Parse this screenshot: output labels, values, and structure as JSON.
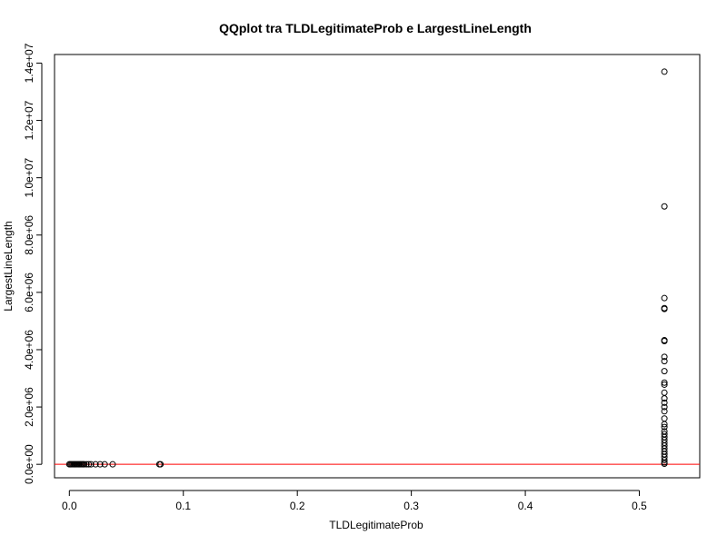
{
  "chart_data": {
    "type": "scatter",
    "title": "QQplot tra TLDLegitimateProb e LargestLineLength",
    "xlabel": "TLDLegitimateProb",
    "ylabel": "LargestLineLength",
    "xlim": [
      -0.013,
      0.553
    ],
    "ylim": [
      -470000,
      14300000
    ],
    "x_ticks": [
      0.0,
      0.1,
      0.2,
      0.3,
      0.4,
      0.5
    ],
    "x_tick_labels": [
      "0.0",
      "0.1",
      "0.2",
      "0.3",
      "0.4",
      "0.5"
    ],
    "y_ticks": [
      0,
      2000000,
      4000000,
      6000000,
      8000000,
      10000000,
      12000000,
      14000000
    ],
    "y_tick_labels": [
      "0.0e+00",
      "2.0e+06",
      "4.0e+06",
      "6.0e+06",
      "8.0e+06",
      "1.0e+07",
      "1.2e+07",
      "1.4e+07"
    ],
    "grid": false,
    "point_style": "open-circle",
    "reference_line": {
      "y": 0,
      "color": "#ff0000"
    },
    "points": [
      {
        "x": 0.0,
        "y": 0
      },
      {
        "x": 0.001,
        "y": 0
      },
      {
        "x": 0.002,
        "y": 0
      },
      {
        "x": 0.003,
        "y": 0
      },
      {
        "x": 0.004,
        "y": 0
      },
      {
        "x": 0.005,
        "y": 0
      },
      {
        "x": 0.006,
        "y": 0
      },
      {
        "x": 0.007,
        "y": 0
      },
      {
        "x": 0.008,
        "y": 0
      },
      {
        "x": 0.009,
        "y": 0
      },
      {
        "x": 0.01,
        "y": 0
      },
      {
        "x": 0.011,
        "y": 0
      },
      {
        "x": 0.012,
        "y": 0
      },
      {
        "x": 0.013,
        "y": 0
      },
      {
        "x": 0.015,
        "y": 0
      },
      {
        "x": 0.017,
        "y": 0
      },
      {
        "x": 0.019,
        "y": 0
      },
      {
        "x": 0.023,
        "y": 0
      },
      {
        "x": 0.027,
        "y": 0
      },
      {
        "x": 0.031,
        "y": 0
      },
      {
        "x": 0.038,
        "y": 0
      },
      {
        "x": 0.079,
        "y": 0
      },
      {
        "x": 0.08,
        "y": 0
      },
      {
        "x": 0.522,
        "y": 13700000
      },
      {
        "x": 0.522,
        "y": 9000000
      },
      {
        "x": 0.522,
        "y": 5800000
      },
      {
        "x": 0.522,
        "y": 5450000
      },
      {
        "x": 0.522,
        "y": 5420000
      },
      {
        "x": 0.522,
        "y": 4330000
      },
      {
        "x": 0.522,
        "y": 4300000
      },
      {
        "x": 0.522,
        "y": 3750000
      },
      {
        "x": 0.522,
        "y": 3600000
      },
      {
        "x": 0.522,
        "y": 3250000
      },
      {
        "x": 0.522,
        "y": 2850000
      },
      {
        "x": 0.522,
        "y": 2780000
      },
      {
        "x": 0.522,
        "y": 2500000
      },
      {
        "x": 0.522,
        "y": 2300000
      },
      {
        "x": 0.522,
        "y": 2150000
      },
      {
        "x": 0.522,
        "y": 2000000
      },
      {
        "x": 0.522,
        "y": 1850000
      },
      {
        "x": 0.522,
        "y": 1600000
      },
      {
        "x": 0.522,
        "y": 1400000
      },
      {
        "x": 0.522,
        "y": 1300000
      },
      {
        "x": 0.522,
        "y": 1150000
      },
      {
        "x": 0.522,
        "y": 1050000
      },
      {
        "x": 0.522,
        "y": 950000
      },
      {
        "x": 0.522,
        "y": 850000
      },
      {
        "x": 0.522,
        "y": 750000
      },
      {
        "x": 0.522,
        "y": 650000
      },
      {
        "x": 0.522,
        "y": 550000
      },
      {
        "x": 0.522,
        "y": 450000
      },
      {
        "x": 0.522,
        "y": 350000
      },
      {
        "x": 0.522,
        "y": 250000
      },
      {
        "x": 0.522,
        "y": 150000
      },
      {
        "x": 0.522,
        "y": 70000
      },
      {
        "x": 0.522,
        "y": 20000
      }
    ]
  }
}
